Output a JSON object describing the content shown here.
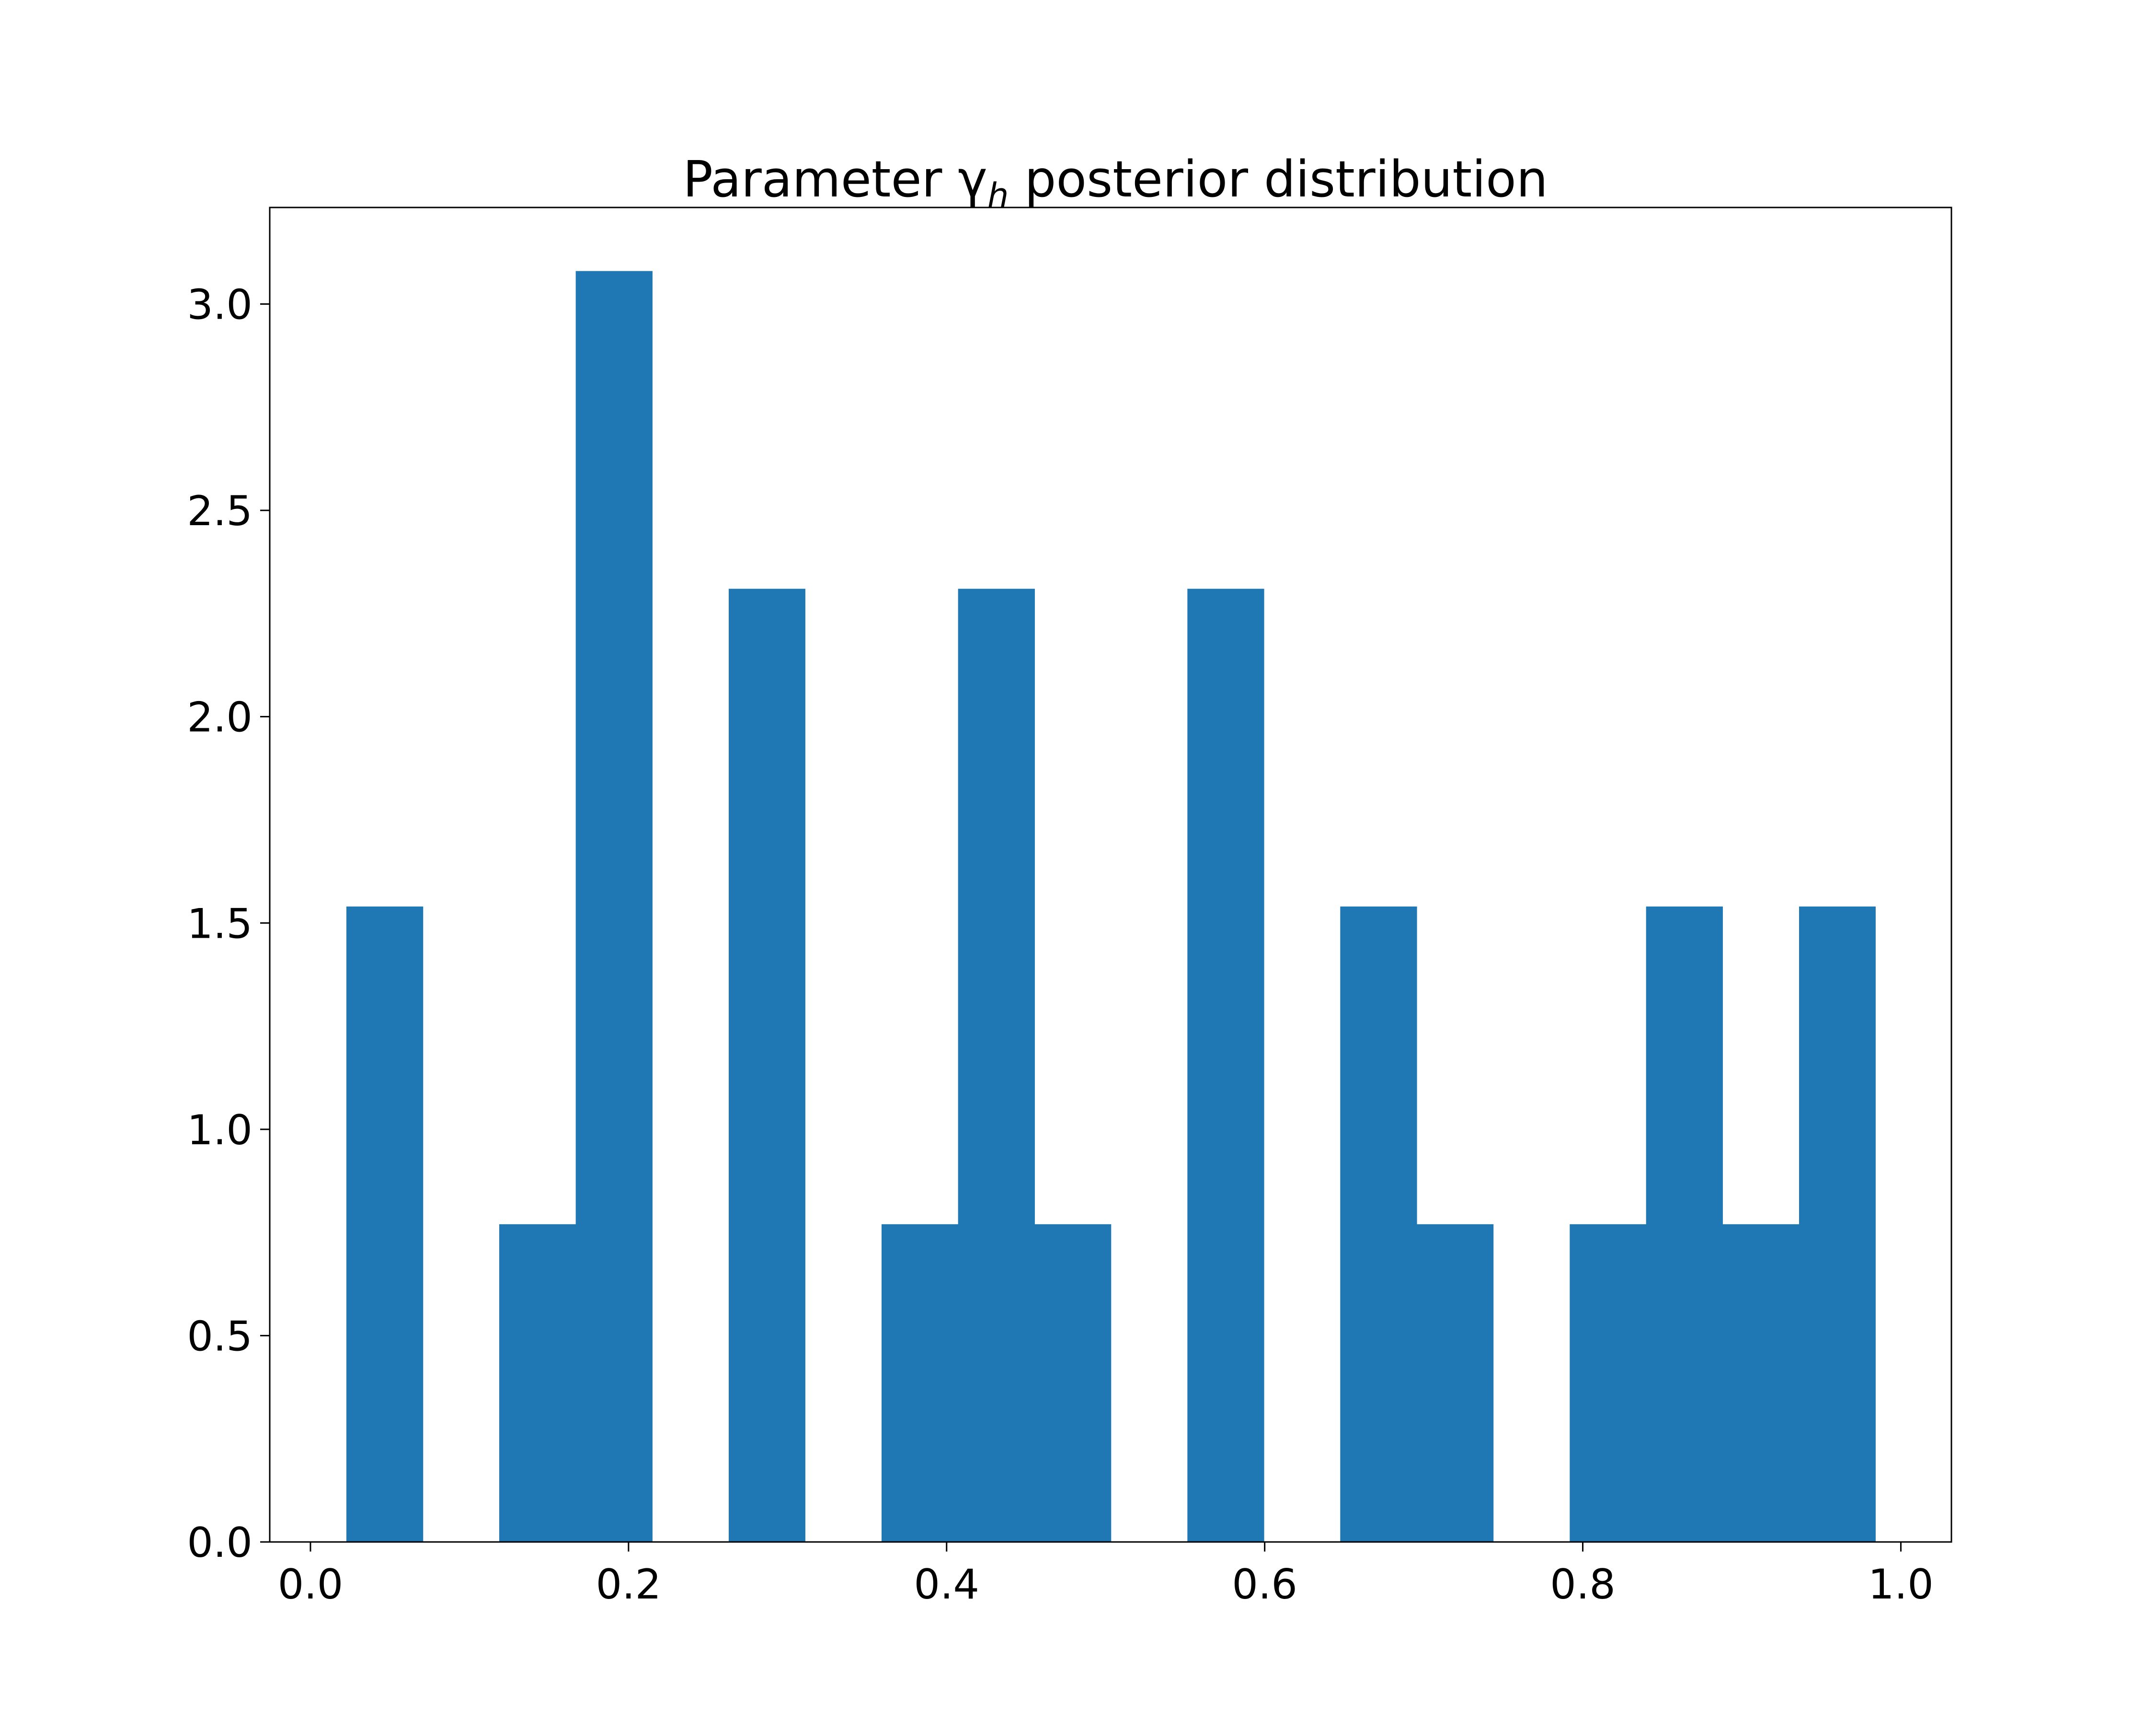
{
  "chart_data": {
    "type": "bar",
    "title": "Parameter γ",
    "title_subscript": "h",
    "title_suffix": " posterior distribution",
    "xlabel": "",
    "ylabel": "",
    "xlim": [
      -0.0256,
      1.0318
    ],
    "ylim": [
      0,
      3.234
    ],
    "grid": false,
    "bar_color": "#1f77b4",
    "bins": [
      {
        "x0": 0.0226,
        "x1": 0.0707,
        "value": 1.54
      },
      {
        "x0": 0.0707,
        "x1": 0.1187,
        "value": 0
      },
      {
        "x0": 0.1187,
        "x1": 0.1668,
        "value": 0.77
      },
      {
        "x0": 0.1668,
        "x1": 0.2149,
        "value": 3.08
      },
      {
        "x0": 0.2149,
        "x1": 0.263,
        "value": 0
      },
      {
        "x0": 0.263,
        "x1": 0.311,
        "value": 2.31
      },
      {
        "x0": 0.311,
        "x1": 0.3591,
        "value": 0
      },
      {
        "x0": 0.3591,
        "x1": 0.4072,
        "value": 0.77
      },
      {
        "x0": 0.4072,
        "x1": 0.4553,
        "value": 2.31
      },
      {
        "x0": 0.4553,
        "x1": 0.5033,
        "value": 0.77
      },
      {
        "x0": 0.5033,
        "x1": 0.5514,
        "value": 0
      },
      {
        "x0": 0.5514,
        "x1": 0.5995,
        "value": 2.31
      },
      {
        "x0": 0.5995,
        "x1": 0.6475,
        "value": 0
      },
      {
        "x0": 0.6475,
        "x1": 0.6956,
        "value": 1.54
      },
      {
        "x0": 0.6956,
        "x1": 0.7437,
        "value": 0.77
      },
      {
        "x0": 0.7437,
        "x1": 0.7918,
        "value": 0
      },
      {
        "x0": 0.7918,
        "x1": 0.8398,
        "value": 0.77
      },
      {
        "x0": 0.8398,
        "x1": 0.8879,
        "value": 1.54
      },
      {
        "x0": 0.8879,
        "x1": 0.936,
        "value": 0.77
      },
      {
        "x0": 0.936,
        "x1": 0.984,
        "value": 1.54
      }
    ],
    "x_ticks": [
      {
        "value": 0.0,
        "label": "0.0"
      },
      {
        "value": 0.2,
        "label": "0.2"
      },
      {
        "value": 0.4,
        "label": "0.4"
      },
      {
        "value": 0.6,
        "label": "0.6"
      },
      {
        "value": 0.8,
        "label": "0.8"
      },
      {
        "value": 1.0,
        "label": "1.0"
      }
    ],
    "y_ticks": [
      {
        "value": 0.0,
        "label": "0.0"
      },
      {
        "value": 0.5,
        "label": "0.5"
      },
      {
        "value": 1.0,
        "label": "1.0"
      },
      {
        "value": 1.5,
        "label": "1.5"
      },
      {
        "value": 2.0,
        "label": "2.0"
      },
      {
        "value": 2.5,
        "label": "2.5"
      },
      {
        "value": 3.0,
        "label": "3.0"
      }
    ]
  }
}
